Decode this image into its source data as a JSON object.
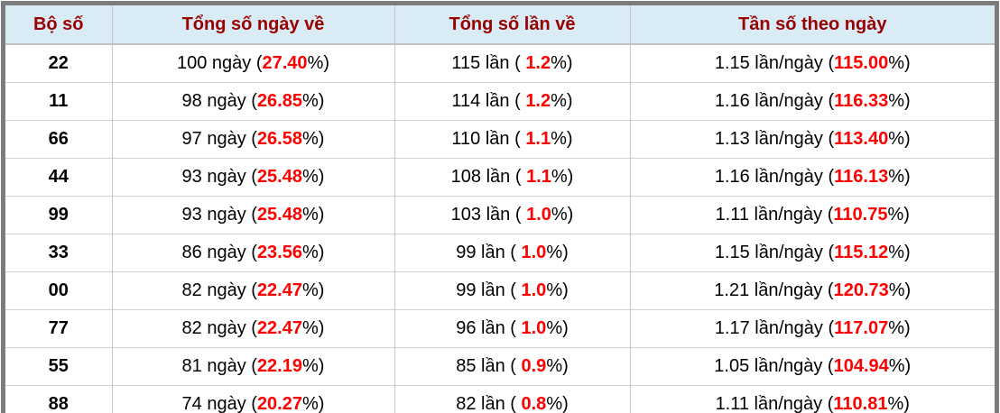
{
  "chart_data": {
    "type": "table",
    "columns": [
      "Bộ số",
      "Tổng số ngày về",
      "Tổng số lần về",
      "Tần số theo ngày"
    ],
    "rows": [
      [
        "22",
        "100 ngày (27.40%)",
        "115 lần ( 1.2%)",
        "1.15 lần/ngày (115.00%)"
      ],
      [
        "11",
        "98 ngày (26.85%)",
        "114 lần ( 1.2%)",
        "1.16 lần/ngày (116.33%)"
      ],
      [
        "66",
        "97 ngày (26.58%)",
        "110 lần ( 1.1%)",
        "1.13 lần/ngày (113.40%)"
      ],
      [
        "44",
        "93 ngày (25.48%)",
        "108 lần ( 1.1%)",
        "1.16 lần/ngày (116.13%)"
      ],
      [
        "99",
        "93 ngày (25.48%)",
        "103 lần ( 1.0%)",
        "1.11 lần/ngày (110.75%)"
      ],
      [
        "33",
        "86 ngày (23.56%)",
        "99 lần ( 1.0%)",
        "1.15 lần/ngày (115.12%)"
      ],
      [
        "00",
        "82 ngày (22.47%)",
        "99 lần ( 1.0%)",
        "1.21 lần/ngày (120.73%)"
      ],
      [
        "77",
        "82 ngày (22.47%)",
        "96 lần ( 1.0%)",
        "1.17 lần/ngày (117.07%)"
      ],
      [
        "55",
        "81 ngày (22.19%)",
        "85 lần ( 0.9%)",
        "1.05 lần/ngày (104.94%)"
      ],
      [
        "88",
        "74 ngày (20.27%)",
        "82 lần ( 0.8%)",
        "1.11 lần/ngày (110.81%)"
      ]
    ]
  },
  "table": {
    "headers": [
      "Bộ số",
      "Tổng số ngày về",
      "Tổng số lần về",
      "Tần số theo ngày"
    ],
    "pct_close": "%)",
    "rows": [
      {
        "pair": "22",
        "days_pre": "100 ngày (",
        "days_pct": "27.40",
        "times_pre": "115 lần ( ",
        "times_pct": "1.2",
        "freq_pre": "1.15 lần/ngày (",
        "freq_pct": "115.00"
      },
      {
        "pair": "11",
        "days_pre": "98 ngày (",
        "days_pct": "26.85",
        "times_pre": "114 lần ( ",
        "times_pct": "1.2",
        "freq_pre": "1.16 lần/ngày (",
        "freq_pct": "116.33"
      },
      {
        "pair": "66",
        "days_pre": "97 ngày (",
        "days_pct": "26.58",
        "times_pre": "110 lần ( ",
        "times_pct": "1.1",
        "freq_pre": "1.13 lần/ngày (",
        "freq_pct": "113.40"
      },
      {
        "pair": "44",
        "days_pre": "93 ngày (",
        "days_pct": "25.48",
        "times_pre": "108 lần ( ",
        "times_pct": "1.1",
        "freq_pre": "1.16 lần/ngày (",
        "freq_pct": "116.13"
      },
      {
        "pair": "99",
        "days_pre": "93 ngày (",
        "days_pct": "25.48",
        "times_pre": "103 lần ( ",
        "times_pct": "1.0",
        "freq_pre": "1.11 lần/ngày (",
        "freq_pct": "110.75"
      },
      {
        "pair": "33",
        "days_pre": "86 ngày (",
        "days_pct": "23.56",
        "times_pre": "99 lần ( ",
        "times_pct": "1.0",
        "freq_pre": "1.15 lần/ngày (",
        "freq_pct": "115.12"
      },
      {
        "pair": "00",
        "days_pre": "82 ngày (",
        "days_pct": "22.47",
        "times_pre": "99 lần ( ",
        "times_pct": "1.0",
        "freq_pre": "1.21 lần/ngày (",
        "freq_pct": "120.73"
      },
      {
        "pair": "77",
        "days_pre": "82 ngày (",
        "days_pct": "22.47",
        "times_pre": "96 lần ( ",
        "times_pct": "1.0",
        "freq_pre": "1.17 lần/ngày (",
        "freq_pct": "117.07"
      },
      {
        "pair": "55",
        "days_pre": "81 ngày (",
        "days_pct": "22.19",
        "times_pre": "85 lần ( ",
        "times_pct": "0.9",
        "freq_pre": "1.05 lần/ngày (",
        "freq_pct": "104.94"
      },
      {
        "pair": "88",
        "days_pre": "74 ngày (",
        "days_pct": "20.27",
        "times_pre": "82 lần ( ",
        "times_pct": "0.8",
        "freq_pre": "1.11 lần/ngày (",
        "freq_pct": "110.81"
      }
    ]
  },
  "colors": {
    "header_bg": "#d9ecf5",
    "header_text": "#990000",
    "highlight_red": "#ff0000",
    "frame_gray": "#7c7c7c",
    "grid_line": "#c6c6c6"
  }
}
